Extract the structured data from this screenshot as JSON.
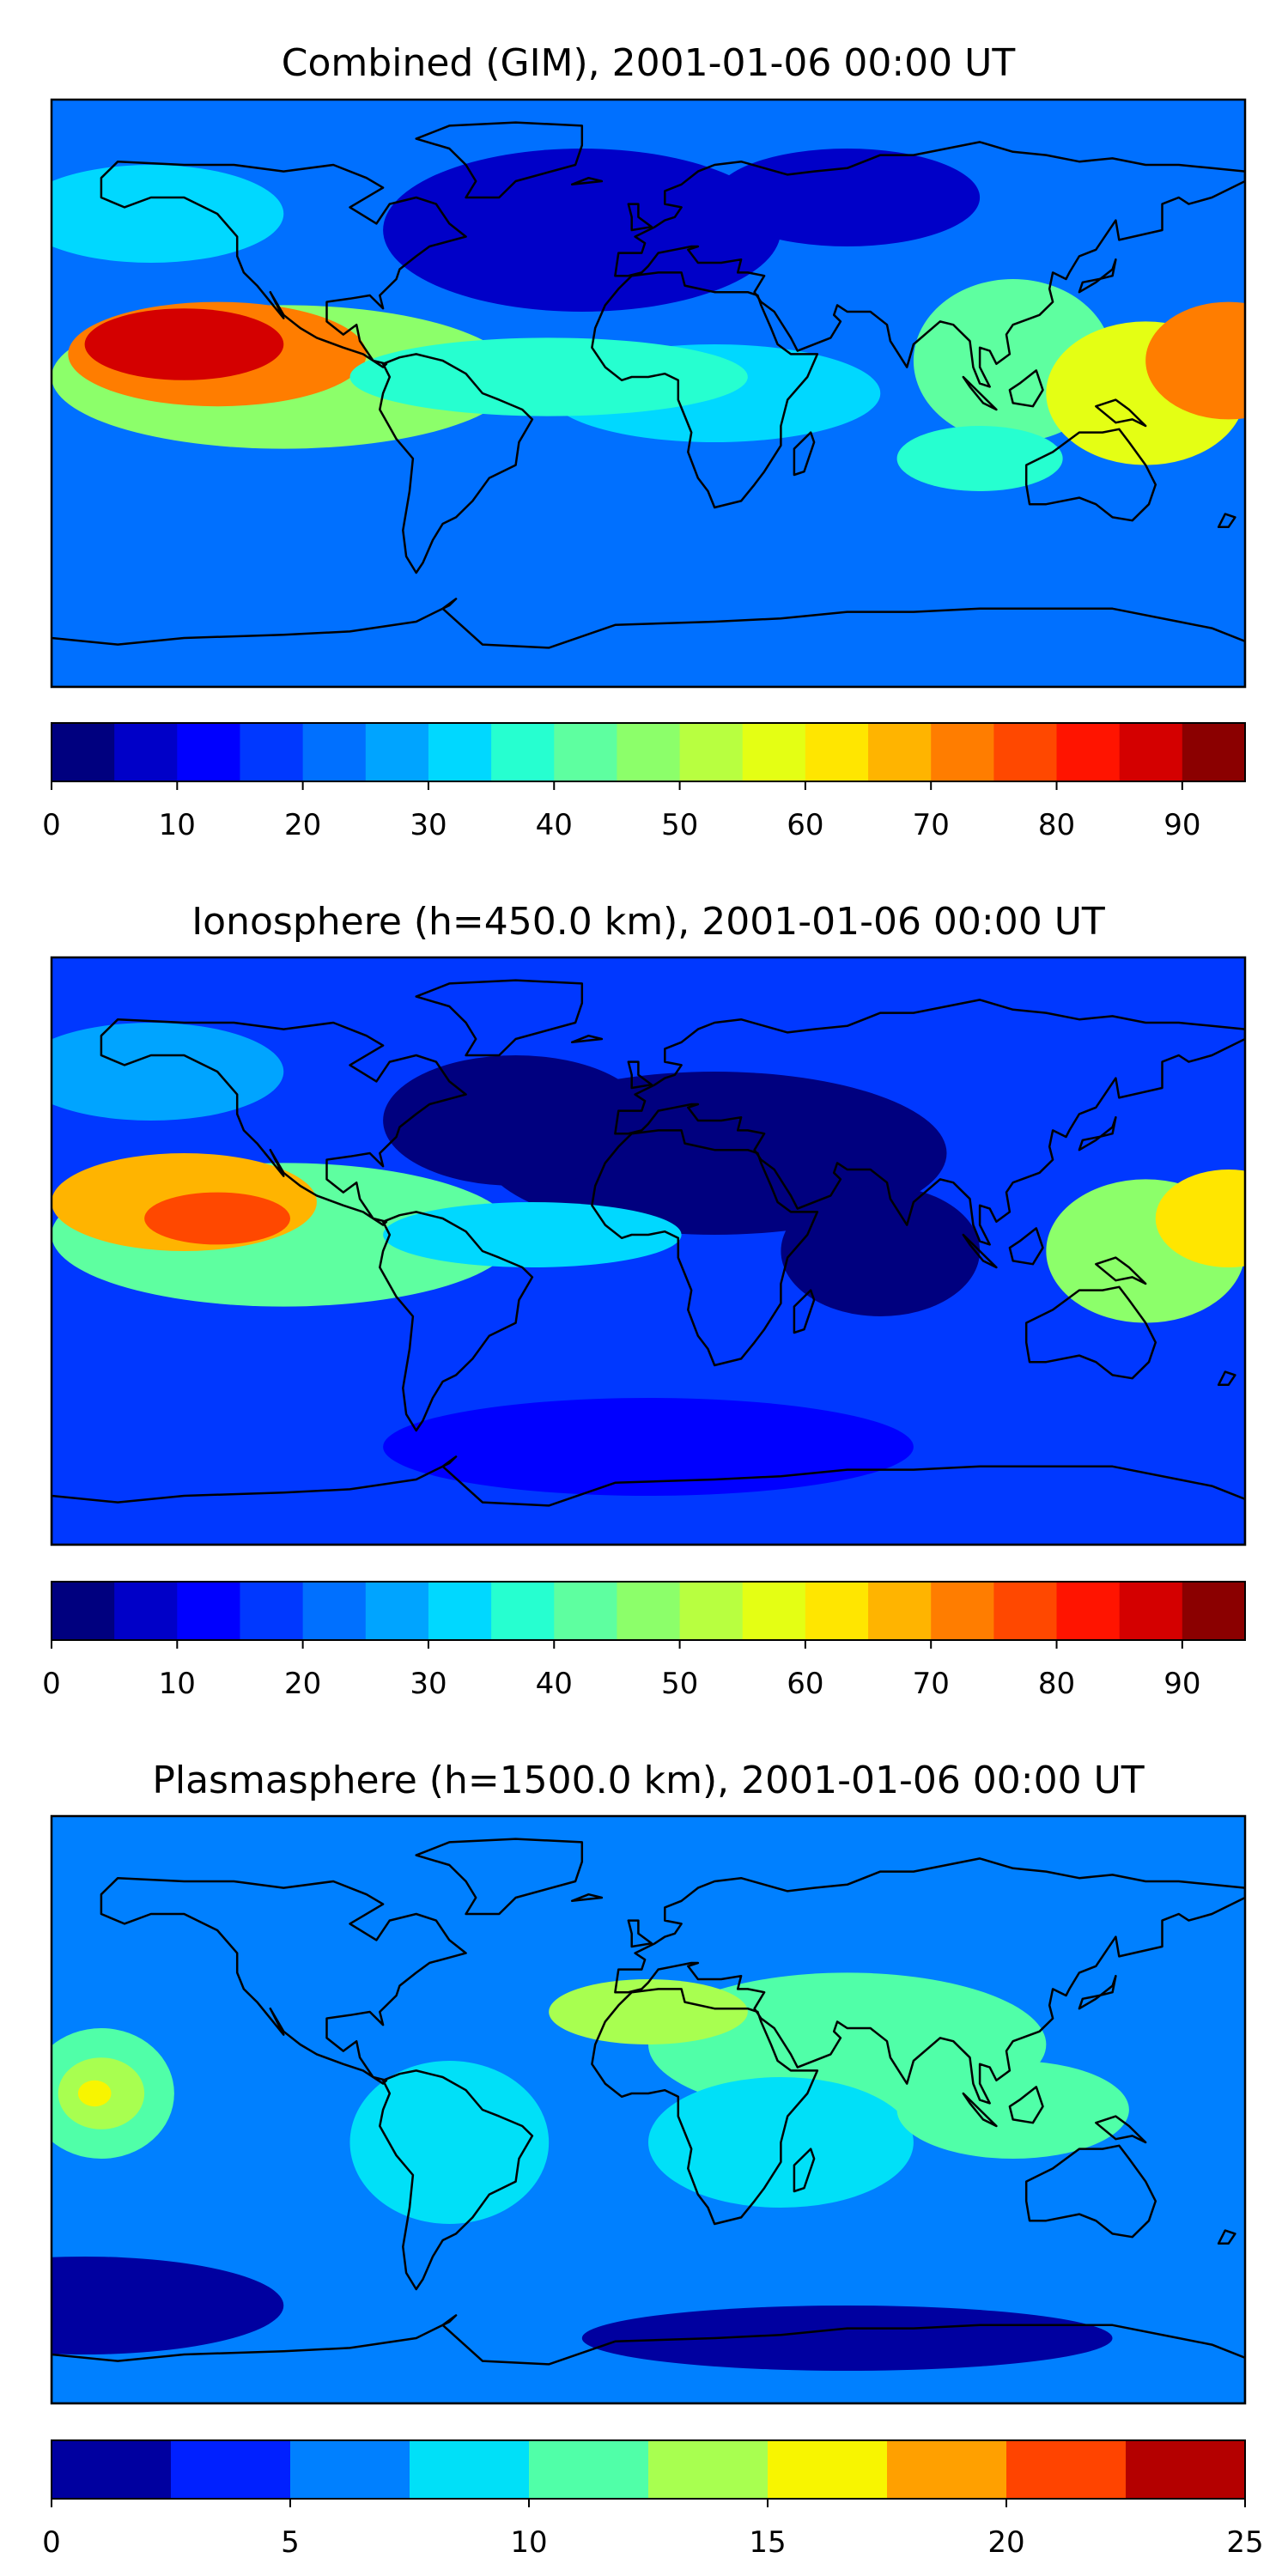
{
  "chart_data": [
    {
      "type": "heatmap",
      "title": "Combined (GIM), 2001-01-06 00:00 UT",
      "colorbar": {
        "levels": [
          0,
          5,
          10,
          15,
          20,
          25,
          30,
          35,
          40,
          45,
          50,
          55,
          60,
          65,
          70,
          75,
          80,
          85,
          90,
          95
        ],
        "ticks": [
          0,
          10,
          20,
          30,
          40,
          50,
          60,
          70,
          80,
          90
        ],
        "colors": [
          "#00007f",
          "#0000c8",
          "#0000ff",
          "#0038ff",
          "#0070ff",
          "#00a4ff",
          "#00d8ff",
          "#26ffd0",
          "#5effa0",
          "#8cff6a",
          "#b8ff40",
          "#e4ff14",
          "#ffe600",
          "#ffb400",
          "#ff7d00",
          "#ff4800",
          "#ff1400",
          "#d40000",
          "#8b0000"
        ]
      },
      "blobs": [
        {
          "lon": -140,
          "lat": 15,
          "value": 85,
          "rx": 30,
          "ry": 11
        },
        {
          "lon": -130,
          "lat": 12,
          "value": 70,
          "rx": 45,
          "ry": 16
        },
        {
          "lon": -110,
          "lat": 5,
          "value": 45,
          "rx": 70,
          "ry": 22
        },
        {
          "lon": 175,
          "lat": 10,
          "value": 70,
          "rx": 25,
          "ry": 18
        },
        {
          "lon": 150,
          "lat": 0,
          "value": 55,
          "rx": 30,
          "ry": 22
        },
        {
          "lon": 110,
          "lat": 10,
          "value": 40,
          "rx": 30,
          "ry": 25
        },
        {
          "lon": -30,
          "lat": 5,
          "value": 35,
          "rx": 60,
          "ry": 12
        },
        {
          "lon": 20,
          "lat": 0,
          "value": 30,
          "rx": 50,
          "ry": 15
        },
        {
          "lon": 100,
          "lat": -20,
          "value": 38,
          "rx": 25,
          "ry": 10
        },
        {
          "lon": -150,
          "lat": 55,
          "value": 30,
          "rx": 40,
          "ry": 15
        },
        {
          "lon": -20,
          "lat": 50,
          "value": 5,
          "rx": 60,
          "ry": 25
        },
        {
          "lon": 60,
          "lat": 60,
          "value": 8,
          "rx": 40,
          "ry": 15
        },
        {
          "lon": 0,
          "lat": -60,
          "value": 20,
          "rx": 80,
          "ry": 15
        }
      ],
      "background_value": 22
    },
    {
      "type": "heatmap",
      "title": "Ionosphere  (h=450.0 km), 2001-01-06 00:00 UT",
      "colorbar": {
        "levels": [
          0,
          5,
          10,
          15,
          20,
          25,
          30,
          35,
          40,
          45,
          50,
          55,
          60,
          65,
          70,
          75,
          80,
          85,
          90,
          95
        ],
        "ticks": [
          0,
          10,
          20,
          30,
          40,
          50,
          60,
          70,
          80,
          90
        ],
        "colors": [
          "#00007f",
          "#0000c8",
          "#0000ff",
          "#0038ff",
          "#0070ff",
          "#00a4ff",
          "#00d8ff",
          "#26ffd0",
          "#5effa0",
          "#8cff6a",
          "#b8ff40",
          "#e4ff14",
          "#ffe600",
          "#ffb400",
          "#ff7d00",
          "#ff4800",
          "#ff1400",
          "#d40000",
          "#8b0000"
        ]
      },
      "blobs": [
        {
          "lon": -130,
          "lat": 10,
          "value": 78,
          "rx": 22,
          "ry": 8
        },
        {
          "lon": -140,
          "lat": 15,
          "value": 68,
          "rx": 40,
          "ry": 15
        },
        {
          "lon": -110,
          "lat": 5,
          "value": 40,
          "rx": 70,
          "ry": 22
        },
        {
          "lon": 175,
          "lat": 10,
          "value": 62,
          "rx": 22,
          "ry": 15
        },
        {
          "lon": 150,
          "lat": 0,
          "value": 45,
          "rx": 30,
          "ry": 22
        },
        {
          "lon": -35,
          "lat": 5,
          "value": 30,
          "rx": 45,
          "ry": 10
        },
        {
          "lon": 20,
          "lat": 30,
          "value": 2,
          "rx": 70,
          "ry": 25
        },
        {
          "lon": -40,
          "lat": 40,
          "value": 2,
          "rx": 40,
          "ry": 20
        },
        {
          "lon": 70,
          "lat": 0,
          "value": 3,
          "rx": 30,
          "ry": 20
        },
        {
          "lon": -150,
          "lat": 55,
          "value": 25,
          "rx": 40,
          "ry": 15
        },
        {
          "lon": 0,
          "lat": -60,
          "value": 14,
          "rx": 80,
          "ry": 15
        }
      ],
      "background_value": 18
    },
    {
      "type": "heatmap",
      "title": "Plasmasphere (h=1500.0 km), 2001-01-06 00:00 UT",
      "colorbar": {
        "levels": [
          0,
          2.5,
          5,
          7.5,
          10,
          12.5,
          15,
          17.5,
          20,
          22.5,
          25
        ],
        "ticks": [
          0,
          5,
          10,
          15,
          20,
          25
        ],
        "colors": [
          "#0000a0",
          "#0020ff",
          "#0080ff",
          "#00e0f8",
          "#50ffa8",
          "#a8ff50",
          "#f8f500",
          "#ffa000",
          "#ff4400",
          "#b40000"
        ]
      },
      "blobs": [
        {
          "lon": -167,
          "lat": 5,
          "value": 16,
          "rx": 5,
          "ry": 4
        },
        {
          "lon": -165,
          "lat": 5,
          "value": 13,
          "rx": 13,
          "ry": 11
        },
        {
          "lon": -165,
          "lat": 5,
          "value": 10,
          "rx": 22,
          "ry": 20
        },
        {
          "lon": 0,
          "lat": 30,
          "value": 13,
          "rx": 30,
          "ry": 10
        },
        {
          "lon": 60,
          "lat": 20,
          "value": 11,
          "rx": 60,
          "ry": 22
        },
        {
          "lon": 110,
          "lat": 0,
          "value": 11,
          "rx": 35,
          "ry": 15
        },
        {
          "lon": -60,
          "lat": -10,
          "value": 9,
          "rx": 30,
          "ry": 25
        },
        {
          "lon": 40,
          "lat": -10,
          "value": 8,
          "rx": 40,
          "ry": 20
        },
        {
          "lon": -170,
          "lat": -60,
          "value": 2,
          "rx": 60,
          "ry": 15
        },
        {
          "lon": 60,
          "lat": -70,
          "value": 2,
          "rx": 80,
          "ry": 10
        }
      ],
      "background_value": 5
    }
  ]
}
